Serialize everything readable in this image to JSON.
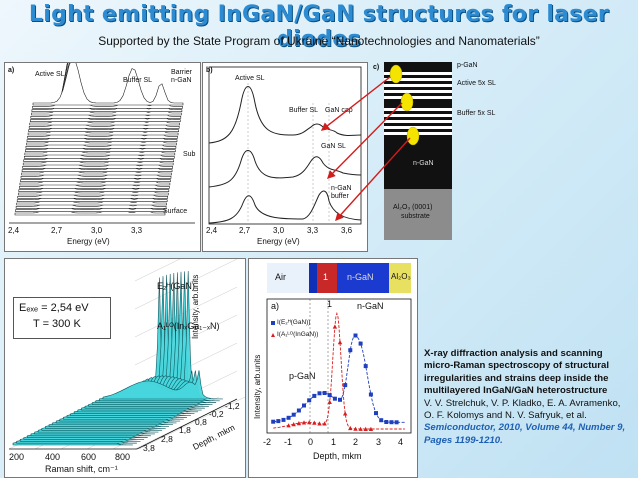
{
  "header": {
    "title": "Light emitting InGaN/GaN structures for laser diodes",
    "subtitle": "Supported by the State Program of Ukraine “Nanotechnologies and Nanomaterials”"
  },
  "panel_a": {
    "letter": "a)",
    "labels": {
      "active": "Active SL",
      "buffer": "Buffer SL",
      "barrier": "Barrier",
      "ngan": "n-GaN",
      "sub": "Sub",
      "surface": "Surface"
    },
    "x_ticks": [
      "2,4",
      "2,7",
      "3,0",
      "3,3"
    ],
    "xlabel": "Energy (eV)"
  },
  "panel_b": {
    "letter": "b)",
    "labels": {
      "active": "Active SL",
      "buffer": "Buffer SL",
      "cap": "GaN cap",
      "gansl": "GaN SL",
      "ngan": "n-GaN",
      "buffer2": "buffer"
    },
    "x_ticks": [
      "2,4",
      "2,7",
      "3,0",
      "3,3",
      "3,6"
    ],
    "xlabel": "Energy (eV)"
  },
  "panel_c": {
    "letter": "c)",
    "labels": {
      "pgan": "p-GaN",
      "active": "Active 5x SL",
      "buffer": "Buffer 5x SL",
      "ngan": "n-GaN",
      "substrate1": "Al₂O₃ (0001)",
      "substrate2": "substrate"
    }
  },
  "panel_raman": {
    "exc_line": "Eₑₓₑ = 2,54 eV",
    "temp_line": "T = 300 K",
    "e2_label": "E₂ᴴ(GaN)",
    "a1_label": "A₁ᴸᴼ(InₓGa₁₋ₓN)",
    "ylabel": "Intensity, arb.units",
    "x_ticks": [
      "200",
      "400",
      "600",
      "800"
    ],
    "xlabel": "Raman shift, cm⁻¹",
    "depth_ticks": [
      "3,8",
      "2,8",
      "1,8",
      "0,8",
      "-0,2",
      "-1,2"
    ],
    "depth_label": "Depth, mkm"
  },
  "panel_depth": {
    "layers": [
      "Air",
      "1",
      "n-GaN",
      "Al₂O₃"
    ],
    "letter": "a)",
    "ylabel": "Intensity, arb.units",
    "legend1": "I(E₂ᴴ(GaN))",
    "legend2": "I(A₁ᴸᴼ(InGaN))",
    "peak1": "1",
    "ngan": "n-GaN",
    "pgan": "p-GaN",
    "x_ticks": [
      "-2",
      "-1",
      "0",
      "1",
      "2",
      "3",
      "4"
    ],
    "xlabel": "Depth, mkm",
    "colors": {
      "blue": "#1f3fbf",
      "red": "#d81f1f",
      "air_band": "#1030b8",
      "layer1": "#c92828",
      "ngan_band": "#1a3ad0",
      "al2o3": "#e8e060"
    }
  },
  "description": {
    "heading": "X-ray diffraction analysis and scanning micro-Raman spectroscopy of structural irregularities and strains deep inside the multilayered InGaN/GaN heterostructure",
    "authors": "V. V. Strelchuk, V. P. Kladko, E. A. Avramenko, O. F. Kolomys and N. V. Safryuk, et al.",
    "reference": "Semiconductor, 2010, Volume 44, Number 9, Pages 1199-1210."
  }
}
